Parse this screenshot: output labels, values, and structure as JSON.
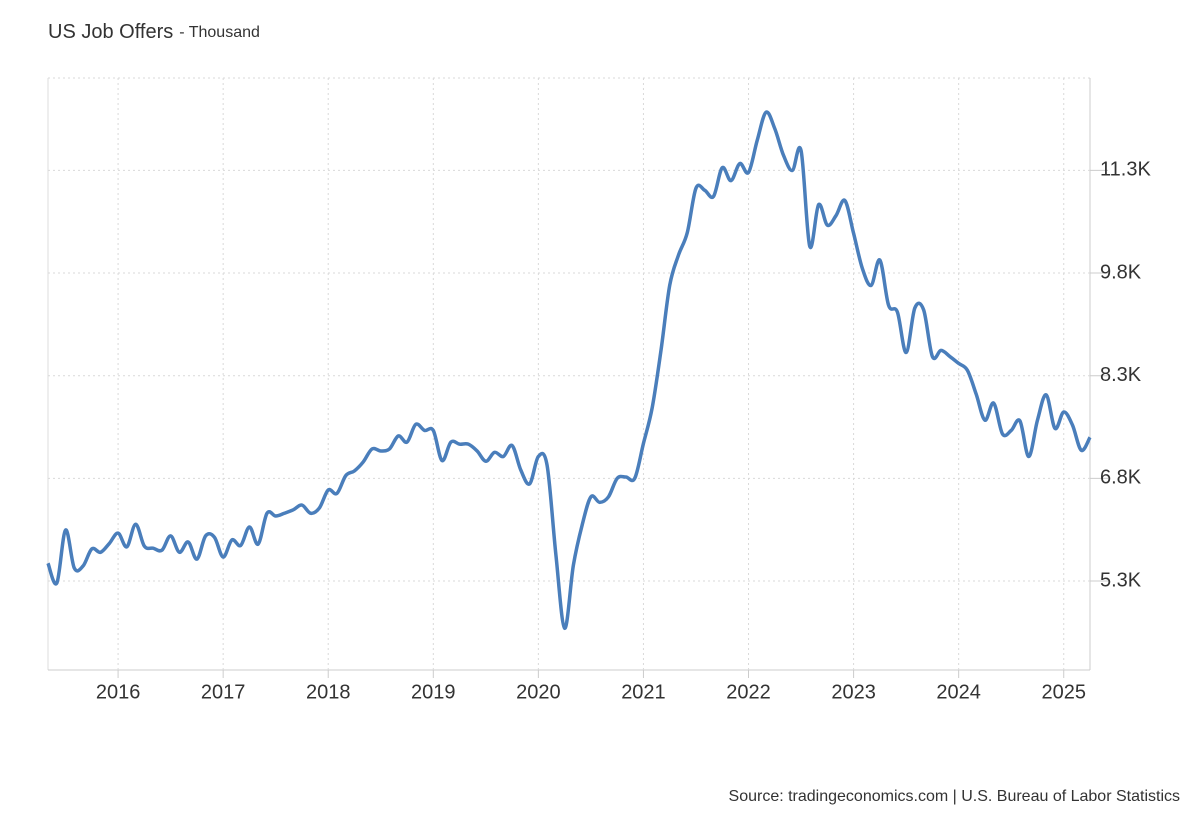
{
  "chart_data": {
    "type": "line",
    "title": "US Job Offers",
    "subtitle": "- Thousand",
    "source": "Source: tradingeconomics.com | U.S. Bureau of Labor Statistics",
    "x": [
      2015.333,
      2015.417,
      2015.5,
      2015.583,
      2015.667,
      2015.75,
      2015.833,
      2015.917,
      2016,
      2016.083,
      2016.167,
      2016.25,
      2016.333,
      2016.417,
      2016.5,
      2016.583,
      2016.667,
      2016.75,
      2016.833,
      2016.917,
      2017,
      2017.083,
      2017.167,
      2017.25,
      2017.333,
      2017.417,
      2017.5,
      2017.583,
      2017.667,
      2017.75,
      2017.833,
      2017.917,
      2018,
      2018.083,
      2018.167,
      2018.25,
      2018.333,
      2018.417,
      2018.5,
      2018.583,
      2018.667,
      2018.75,
      2018.833,
      2018.917,
      2019,
      2019.083,
      2019.167,
      2019.25,
      2019.333,
      2019.417,
      2019.5,
      2019.583,
      2019.667,
      2019.75,
      2019.833,
      2019.917,
      2020,
      2020.083,
      2020.167,
      2020.25,
      2020.333,
      2020.417,
      2020.5,
      2020.583,
      2020.667,
      2020.75,
      2020.833,
      2020.917,
      2021,
      2021.083,
      2021.167,
      2021.25,
      2021.333,
      2021.417,
      2021.5,
      2021.583,
      2021.667,
      2021.75,
      2021.833,
      2021.917,
      2022,
      2022.083,
      2022.167,
      2022.25,
      2022.333,
      2022.417,
      2022.5,
      2022.583,
      2022.667,
      2022.75,
      2022.833,
      2022.917,
      2023,
      2023.083,
      2023.167,
      2023.25,
      2023.333,
      2023.417,
      2023.5,
      2023.583,
      2023.667,
      2023.75,
      2023.833,
      2023.917,
      2024,
      2024.083,
      2024.167,
      2024.25,
      2024.333,
      2024.417,
      2024.5,
      2024.583,
      2024.667,
      2024.75,
      2024.833,
      2024.917,
      2025,
      2025.083,
      2025.167,
      2025.25
    ],
    "series": [
      {
        "name": "US Job Offers",
        "color": "#4a7ebb",
        "values": [
          5560,
          5270,
          6045,
          5490,
          5520,
          5770,
          5720,
          5850,
          6000,
          5800,
          6130,
          5810,
          5780,
          5750,
          5960,
          5720,
          5870,
          5620,
          5960,
          5940,
          5650,
          5900,
          5820,
          6090,
          5840,
          6290,
          6250,
          6290,
          6340,
          6410,
          6290,
          6370,
          6630,
          6580,
          6840,
          6910,
          7040,
          7230,
          7200,
          7230,
          7420,
          7330,
          7590,
          7500,
          7500,
          7060,
          7330,
          7300,
          7300,
          7200,
          7050,
          7180,
          7120,
          7280,
          6920,
          6720,
          7120,
          6990,
          5680,
          4610,
          5530,
          6120,
          6530,
          6450,
          6530,
          6800,
          6820,
          6800,
          7310,
          7830,
          8670,
          9620,
          10060,
          10390,
          11040,
          11010,
          10920,
          11340,
          11150,
          11400,
          11270,
          11740,
          12150,
          11910,
          11520,
          11300,
          11590,
          10190,
          10800,
          10500,
          10640,
          10860,
          10380,
          9870,
          9620,
          9990,
          9330,
          9230,
          8640,
          9290,
          9260,
          8580,
          8670,
          8580,
          8480,
          8380,
          8030,
          7650,
          7900,
          7450,
          7500,
          7640,
          7120,
          7650,
          8020,
          7530,
          7770,
          7580,
          7210,
          7400
        ]
      }
    ],
    "xlim": [
      2015.333,
      2025.25
    ],
    "xticks": [
      2016,
      2017,
      2018,
      2019,
      2020,
      2021,
      2022,
      2023,
      2024,
      2025
    ],
    "ylim": [
      4000,
      12650
    ],
    "yticks": [
      {
        "value": 5300,
        "label": "5.3K"
      },
      {
        "value": 6800,
        "label": "6.8K"
      },
      {
        "value": 8300,
        "label": "8.3K"
      },
      {
        "value": 9800,
        "label": "9.8K"
      },
      {
        "value": 11300,
        "label": "11.3K"
      }
    ],
    "grid": true
  }
}
